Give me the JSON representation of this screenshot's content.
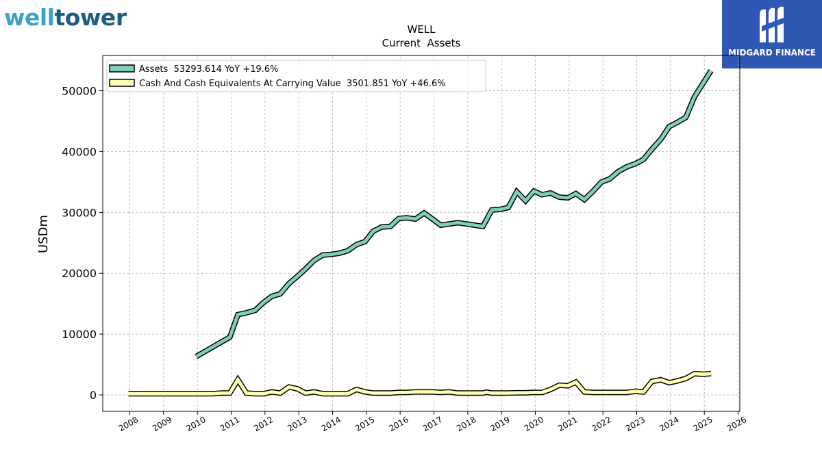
{
  "header": {
    "brand_logo": {
      "text_part1": "well",
      "text_part2": "tower",
      "color1": "#3ea3c9",
      "color2": "#1f5d84"
    },
    "publisher_logo": {
      "text": "MIDGARD FINANCE",
      "background": "#2e58b4",
      "icon": "midgard-m-icon"
    }
  },
  "chart_data": {
    "type": "line",
    "title": "WELL",
    "subtitle": "Current  Assets",
    "ylabel": "USDm",
    "xlabel": "",
    "xlim": [
      2007.2,
      2026.05
    ],
    "ylim": [
      -2700,
      55800
    ],
    "x_ticks": [
      2008,
      2009,
      2010,
      2011,
      2012,
      2013,
      2014,
      2015,
      2016,
      2017,
      2018,
      2019,
      2020,
      2021,
      2022,
      2023,
      2024,
      2025,
      2026
    ],
    "y_ticks": [
      0,
      10000,
      20000,
      30000,
      40000,
      50000
    ],
    "grid": true,
    "legend_position": "top-left",
    "series": [
      {
        "name": "Assets",
        "legend_label": "Assets  53293.614 YoY +19.6%",
        "color": "#7fcdbb",
        "x": [
          2009.96,
          2010.96,
          2011.2,
          2011.45,
          2011.71,
          2011.96,
          2012.2,
          2012.45,
          2012.71,
          2012.96,
          2013.2,
          2013.45,
          2013.71,
          2013.96,
          2014.2,
          2014.45,
          2014.71,
          2014.96,
          2015.2,
          2015.45,
          2015.71,
          2015.96,
          2016.2,
          2016.45,
          2016.71,
          2016.96,
          2017.2,
          2017.45,
          2017.71,
          2017.96,
          2018.2,
          2018.45,
          2018.71,
          2018.96,
          2019.2,
          2019.45,
          2019.71,
          2019.96,
          2020.2,
          2020.45,
          2020.71,
          2020.96,
          2021.2,
          2021.45,
          2021.71,
          2021.96,
          2022.2,
          2022.45,
          2022.71,
          2022.96,
          2023.2,
          2023.45,
          2023.71,
          2023.96,
          2024.2,
          2024.45,
          2024.71,
          2024.96,
          2025.2
        ],
        "values": [
          6300,
          9500,
          13200,
          13500,
          13900,
          15200,
          16200,
          16600,
          18300,
          19500,
          20700,
          22100,
          23000,
          23100,
          23300,
          23700,
          24700,
          25200,
          26900,
          27600,
          27700,
          29000,
          29100,
          28900,
          29900,
          28900,
          27900,
          28100,
          28300,
          28100,
          27900,
          27700,
          30400,
          30500,
          30800,
          33400,
          31900,
          33500,
          32900,
          33200,
          32500,
          32400,
          33100,
          32100,
          33500,
          35000,
          35500,
          36700,
          37500,
          38000,
          38700,
          40400,
          42000,
          44100,
          44800,
          45600,
          49000,
          51200,
          53300
        ]
      },
      {
        "name": "Cash And Cash Equivalents At Carrying Value",
        "legend_label": "Cash And Cash Equivalents At Carrying Value  3501.851 YoY +46.6%",
        "color": "#ffffb3",
        "x": [
          2007.96,
          2009.96,
          2010.45,
          2010.71,
          2010.96,
          2011.2,
          2011.45,
          2011.71,
          2011.96,
          2012.2,
          2012.45,
          2012.71,
          2012.96,
          2013.2,
          2013.45,
          2013.71,
          2013.96,
          2014.2,
          2014.45,
          2014.71,
          2014.96,
          2015.2,
          2015.45,
          2015.71,
          2015.96,
          2016.2,
          2016.45,
          2016.71,
          2016.96,
          2017.2,
          2017.45,
          2017.71,
          2017.96,
          2018.2,
          2018.45,
          2018.55,
          2018.71,
          2018.96,
          2019.2,
          2019.45,
          2019.71,
          2019.96,
          2020.2,
          2020.45,
          2020.71,
          2020.96,
          2021.2,
          2021.45,
          2021.71,
          2021.96,
          2022.2,
          2022.45,
          2022.71,
          2022.96,
          2023.2,
          2023.45,
          2023.71,
          2023.96,
          2024.2,
          2024.45,
          2024.71,
          2024.96,
          2025.2
        ],
        "values": [
          200,
          200,
          200,
          300,
          300,
          2500,
          300,
          200,
          200,
          500,
          300,
          1300,
          1000,
          300,
          500,
          200,
          200,
          200,
          200,
          900,
          500,
          300,
          300,
          300,
          400,
          400,
          500,
          500,
          500,
          400,
          500,
          300,
          300,
          300,
          300,
          450,
          300,
          300,
          300,
          350,
          350,
          400,
          400,
          900,
          1600,
          1500,
          2100,
          500,
          400,
          400,
          400,
          400,
          400,
          600,
          500,
          2200,
          2500,
          2000,
          2300,
          2700,
          3500,
          3400,
          3500
        ]
      }
    ]
  }
}
